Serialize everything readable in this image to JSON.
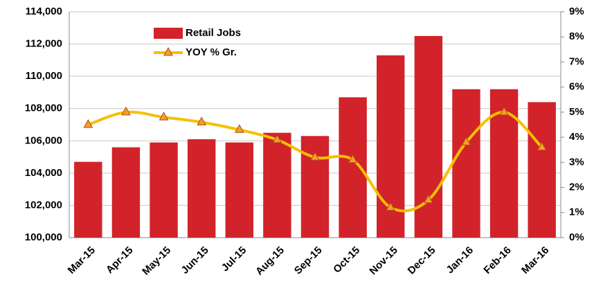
{
  "chart_data": {
    "type": "bar",
    "categories": [
      "Mar-15",
      "Apr-15",
      "May-15",
      "Jun-15",
      "Jul-15",
      "Aug-15",
      "Sep-15",
      "Oct-15",
      "Nov-15",
      "Dec-15",
      "Jan-16",
      "Feb-16",
      "Mar-16"
    ],
    "series": [
      {
        "name": "Retail Jobs",
        "type": "bar",
        "color": "#d2232a",
        "values": [
          104700,
          105600,
          105900,
          106100,
          105900,
          106500,
          106300,
          108700,
          111300,
          112500,
          109200,
          109200,
          108400
        ]
      },
      {
        "name": "YOY % Gr.",
        "type": "line",
        "axis": "y2",
        "color": "#f5c000",
        "marker_color": "#f4a020",
        "values": [
          4.5,
          5.0,
          4.8,
          4.6,
          4.3,
          3.9,
          3.2,
          3.1,
          1.2,
          1.5,
          3.8,
          5.0,
          3.6
        ]
      }
    ],
    "ylim": [
      100000,
      114000
    ],
    "yticks": [
      {
        "value": 100000,
        "label": "100,000"
      },
      {
        "value": 102000,
        "label": "102,000"
      },
      {
        "value": 104000,
        "label": "104,000"
      },
      {
        "value": 106000,
        "label": "106,000"
      },
      {
        "value": 108000,
        "label": "108,000"
      },
      {
        "value": 110000,
        "label": "110,000"
      },
      {
        "value": 112000,
        "label": "112,000"
      },
      {
        "value": 114000,
        "label": "114,000"
      }
    ],
    "y2lim": [
      0,
      9
    ],
    "y2ticks": [
      {
        "value": 0,
        "label": "0%"
      },
      {
        "value": 1,
        "label": "1%"
      },
      {
        "value": 2,
        "label": "2%"
      },
      {
        "value": 3,
        "label": "3%"
      },
      {
        "value": 4,
        "label": "4%"
      },
      {
        "value": 5,
        "label": "5%"
      },
      {
        "value": 6,
        "label": "6%"
      },
      {
        "value": 7,
        "label": "7%"
      },
      {
        "value": 8,
        "label": "8%"
      },
      {
        "value": 9,
        "label": "9%"
      }
    ],
    "grid": true,
    "legend": "upper left"
  }
}
